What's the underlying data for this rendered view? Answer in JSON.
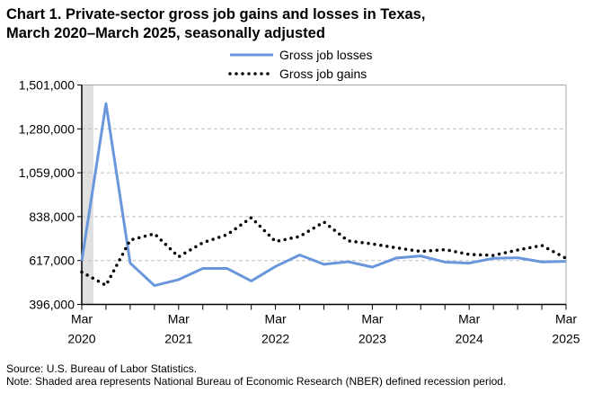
{
  "chart_data": {
    "type": "line",
    "title_line1": "Chart 1. Private-sector gross job gains and losses in Texas,",
    "title_line2": "March 2020–March 2025, seasonally adjusted",
    "xlabel": "",
    "ylabel": "",
    "ylim": [
      396000,
      1501000
    ],
    "yticks": [
      "396,000",
      "617,000",
      "838,000",
      "1,059,000",
      "1,280,000",
      "1,501,000"
    ],
    "xtick_labels": [
      [
        "Mar",
        "2020"
      ],
      [
        "Mar",
        "2021"
      ],
      [
        "Mar",
        "2022"
      ],
      [
        "Mar",
        "2023"
      ],
      [
        "Mar",
        "2024"
      ],
      [
        "Mar",
        "2025"
      ]
    ],
    "x": [
      "Mar 2020",
      "Jun 2020",
      "Sep 2020",
      "Dec 2020",
      "Mar 2021",
      "Jun 2021",
      "Sep 2021",
      "Dec 2021",
      "Mar 2022",
      "Jun 2022",
      "Sep 2022",
      "Dec 2022",
      "Mar 2023",
      "Jun 2023",
      "Sep 2023",
      "Dec 2023",
      "Mar 2024",
      "Jun 2024",
      "Sep 2024",
      "Dec 2024",
      "Mar 2025"
    ],
    "grid": "horizontal dashed",
    "legend_position": "top-center",
    "recession_shading": {
      "from": "Mar 2020",
      "to": "Apr 2020",
      "color": "#e0e0e0"
    },
    "series": [
      {
        "name": "Gross job losses",
        "color": "#6a97dc",
        "style": "solid",
        "values": [
          615000,
          1407000,
          604000,
          491000,
          521000,
          577000,
          577000,
          514000,
          587000,
          645000,
          598000,
          611000,
          584000,
          630000,
          640000,
          609000,
          604000,
          628000,
          631000,
          610000,
          613000
        ]
      },
      {
        "name": "Gross job gains",
        "color": "#000000",
        "style": "dotted",
        "values": [
          559000,
          492000,
          720000,
          752000,
          636000,
          707000,
          747000,
          833000,
          713000,
          738000,
          811000,
          716000,
          701000,
          681000,
          663000,
          672000,
          648000,
          643000,
          670000,
          693000,
          628000
        ]
      }
    ]
  },
  "footer": {
    "source": "Source: U.S. Bureau of Labor Statistics.",
    "note": "Note: Shaded area represents National Bureau of Economic Research (NBER) defined recession period."
  }
}
